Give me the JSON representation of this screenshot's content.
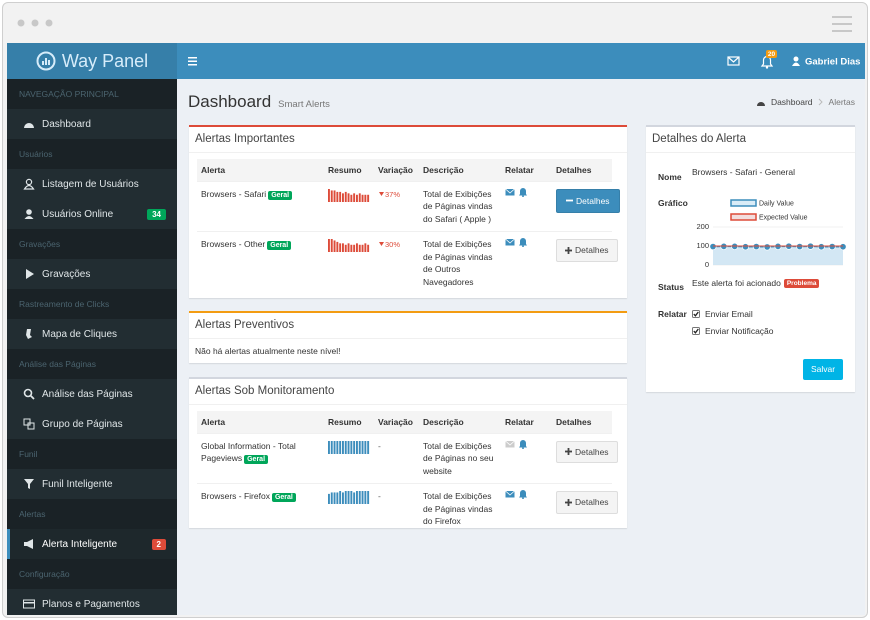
{
  "brand": "Way Panel",
  "topbar": {
    "notification_count": 20,
    "user": "Gabriel Dias"
  },
  "sidebar": [
    {
      "section": "NAVEGAÇÃO PRINCIPAL"
    },
    {
      "label": "Dashboard"
    },
    {
      "section": "Usuários"
    },
    {
      "label": "Listagem de Usuários"
    },
    {
      "label": "Usuários Online",
      "badge": 34,
      "badge_color": "#00a65a"
    },
    {
      "section": "Gravações"
    },
    {
      "label": "Gravações"
    },
    {
      "section": "Rastreamento de Clicks"
    },
    {
      "label": "Mapa de Cliques"
    },
    {
      "section": "Análise das Páginas"
    },
    {
      "label": "Análise das Páginas"
    },
    {
      "label": "Grupo de Páginas"
    },
    {
      "section": "Funil"
    },
    {
      "label": "Funil Inteligente"
    },
    {
      "section": "Alertas"
    },
    {
      "label": "Alerta Inteligente",
      "badge": 2,
      "badge_color": "#dd4b39",
      "active": true
    },
    {
      "section": "Configuração"
    },
    {
      "label": "Planos e Pagamentos"
    }
  ],
  "page": {
    "title": "Dashboard",
    "subtitle": "Smart Alerts",
    "breadcrumb": [
      "Dashboard",
      "Alertas"
    ]
  },
  "columns": [
    "Alerta",
    "Resumo",
    "Variação",
    "Descrição",
    "Relatar",
    "Detalhes"
  ],
  "boxes": [
    {
      "title": "Alertas Importantes",
      "border": "#dd4b39",
      "spark_color": "#dd4b39",
      "rows": [
        {
          "alert": "Browsers - Safari",
          "tag": "Geral",
          "spark": [
            9,
            8,
            8,
            7,
            7,
            6,
            7,
            6,
            5,
            6,
            5,
            6,
            5,
            5,
            5
          ],
          "variation": "37%",
          "description": "Total de Exibições de Páginas vindas do Safari ( Apple )",
          "email": true,
          "button": "Detalhes",
          "open": true
        },
        {
          "alert": "Browsers - Other",
          "tag": "Geral",
          "spark": [
            9,
            9,
            8,
            7,
            6,
            6,
            5,
            6,
            5,
            5,
            6,
            5,
            5,
            6,
            5
          ],
          "variation": "30%",
          "description": "Total de Exibições de Páginas vindas de Outros Navegadores",
          "email": true,
          "button": "Detalhes",
          "open": false
        }
      ]
    },
    {
      "title": "Alertas Preventivos",
      "border": "#f39c12",
      "message": "Não há alertas atualmente neste nível!"
    },
    {
      "title": "Alertas Sob Monitoramento",
      "border": "#d2d6de",
      "spark_color": "#3c8dbc",
      "rows": [
        {
          "alert": "Global Information - Total Pageviews",
          "tag": "Geral",
          "spark": [
            9,
            9,
            9,
            9,
            9,
            9,
            9,
            9,
            9,
            9,
            9,
            9,
            9,
            9,
            9
          ],
          "variation": "-",
          "description": "Total de Exibições de Páginas no seu website",
          "email": false,
          "button": "Detalhes",
          "open": false
        },
        {
          "alert": "Browsers - Firefox",
          "tag": "Geral",
          "spark": [
            7,
            8,
            8,
            8,
            9,
            8,
            9,
            9,
            9,
            8,
            9,
            9,
            9,
            9,
            9
          ],
          "variation": "-",
          "description": "Total de Exibições de Páginas vindas do Firefox",
          "email": true,
          "button": "Detalhes",
          "open": false
        }
      ]
    }
  ],
  "details": {
    "title": "Detalhes do Alerta",
    "name_label": "Nome",
    "name": "Browsers - Safari - General",
    "chart_label": "Gráfico",
    "chart": {
      "type": "line",
      "ylim": [
        0,
        200
      ],
      "yticks": [
        0,
        100,
        200
      ],
      "grid": true,
      "series": [
        {
          "name": "Daily Value",
          "color": "#3c8dbc",
          "values": [
            97,
            98,
            98,
            96,
            97,
            95,
            98,
            99,
            97,
            99,
            96,
            97,
            96
          ]
        },
        {
          "name": "Expected Value",
          "color": "#dd4b39",
          "values": [
            100,
            100,
            100,
            100,
            100,
            100,
            100,
            100,
            100,
            100,
            100,
            100,
            100
          ]
        }
      ]
    },
    "status_label": "Status",
    "status": "Este alerta foi acionado",
    "status_badge": "Problema",
    "report_label": "Relatar",
    "options": [
      "Enviar Email",
      "Enviar Notificação"
    ],
    "save": "Salvar"
  }
}
